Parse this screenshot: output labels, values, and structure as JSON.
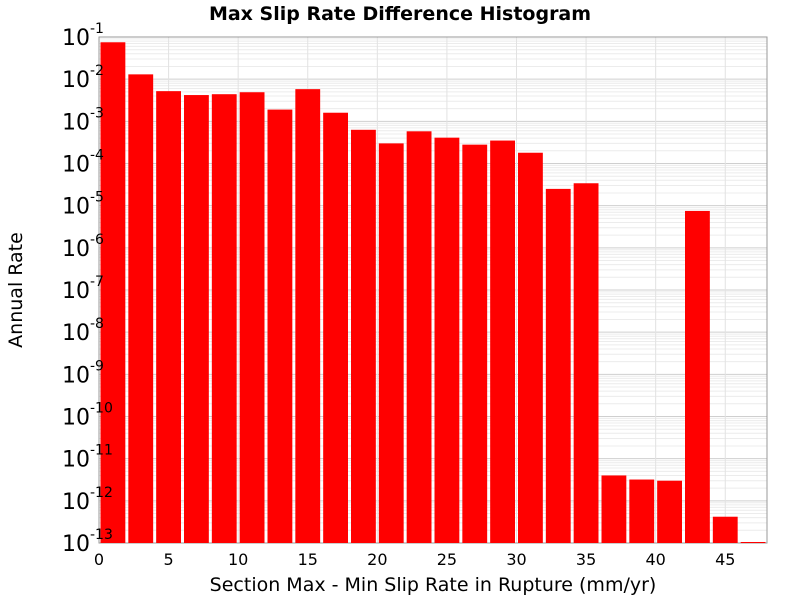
{
  "chart_data": {
    "type": "bar",
    "title": "Max Slip Rate Difference Histogram",
    "xlabel": "Section Max - Min Slip Rate in Rupture (mm/yr)",
    "ylabel": "Annual Rate",
    "y_scale": "log",
    "ylim": [
      1e-13,
      0.1
    ],
    "xlim": [
      0,
      48
    ],
    "grid": true,
    "bar_color": "#ff0000",
    "x_ticks": [
      0,
      5,
      10,
      15,
      20,
      25,
      30,
      35,
      40,
      45
    ],
    "y_tick_base": "10",
    "y_tick_exponents": [
      "-13",
      "-12",
      "-11",
      "-10",
      "-9",
      "-8",
      "-7",
      "-6",
      "-5",
      "-4",
      "-3",
      "-2",
      "-1"
    ],
    "bin_width": 2,
    "x": [
      1,
      3,
      5,
      7,
      9,
      11,
      13,
      15,
      17,
      19,
      21,
      23,
      25,
      27,
      29,
      31,
      33,
      35,
      37,
      39,
      41,
      43,
      45,
      47
    ],
    "values": [
      0.075,
      0.013,
      0.0052,
      0.0042,
      0.0044,
      0.0049,
      0.0019,
      0.0058,
      0.0016,
      0.00063,
      0.0003,
      0.00058,
      0.00041,
      0.00028,
      0.00035,
      0.00018,
      2.5e-05,
      3.4e-05,
      4e-12,
      3.2e-12,
      3e-12,
      7.5e-06,
      4.2e-13,
      1e-13
    ]
  }
}
